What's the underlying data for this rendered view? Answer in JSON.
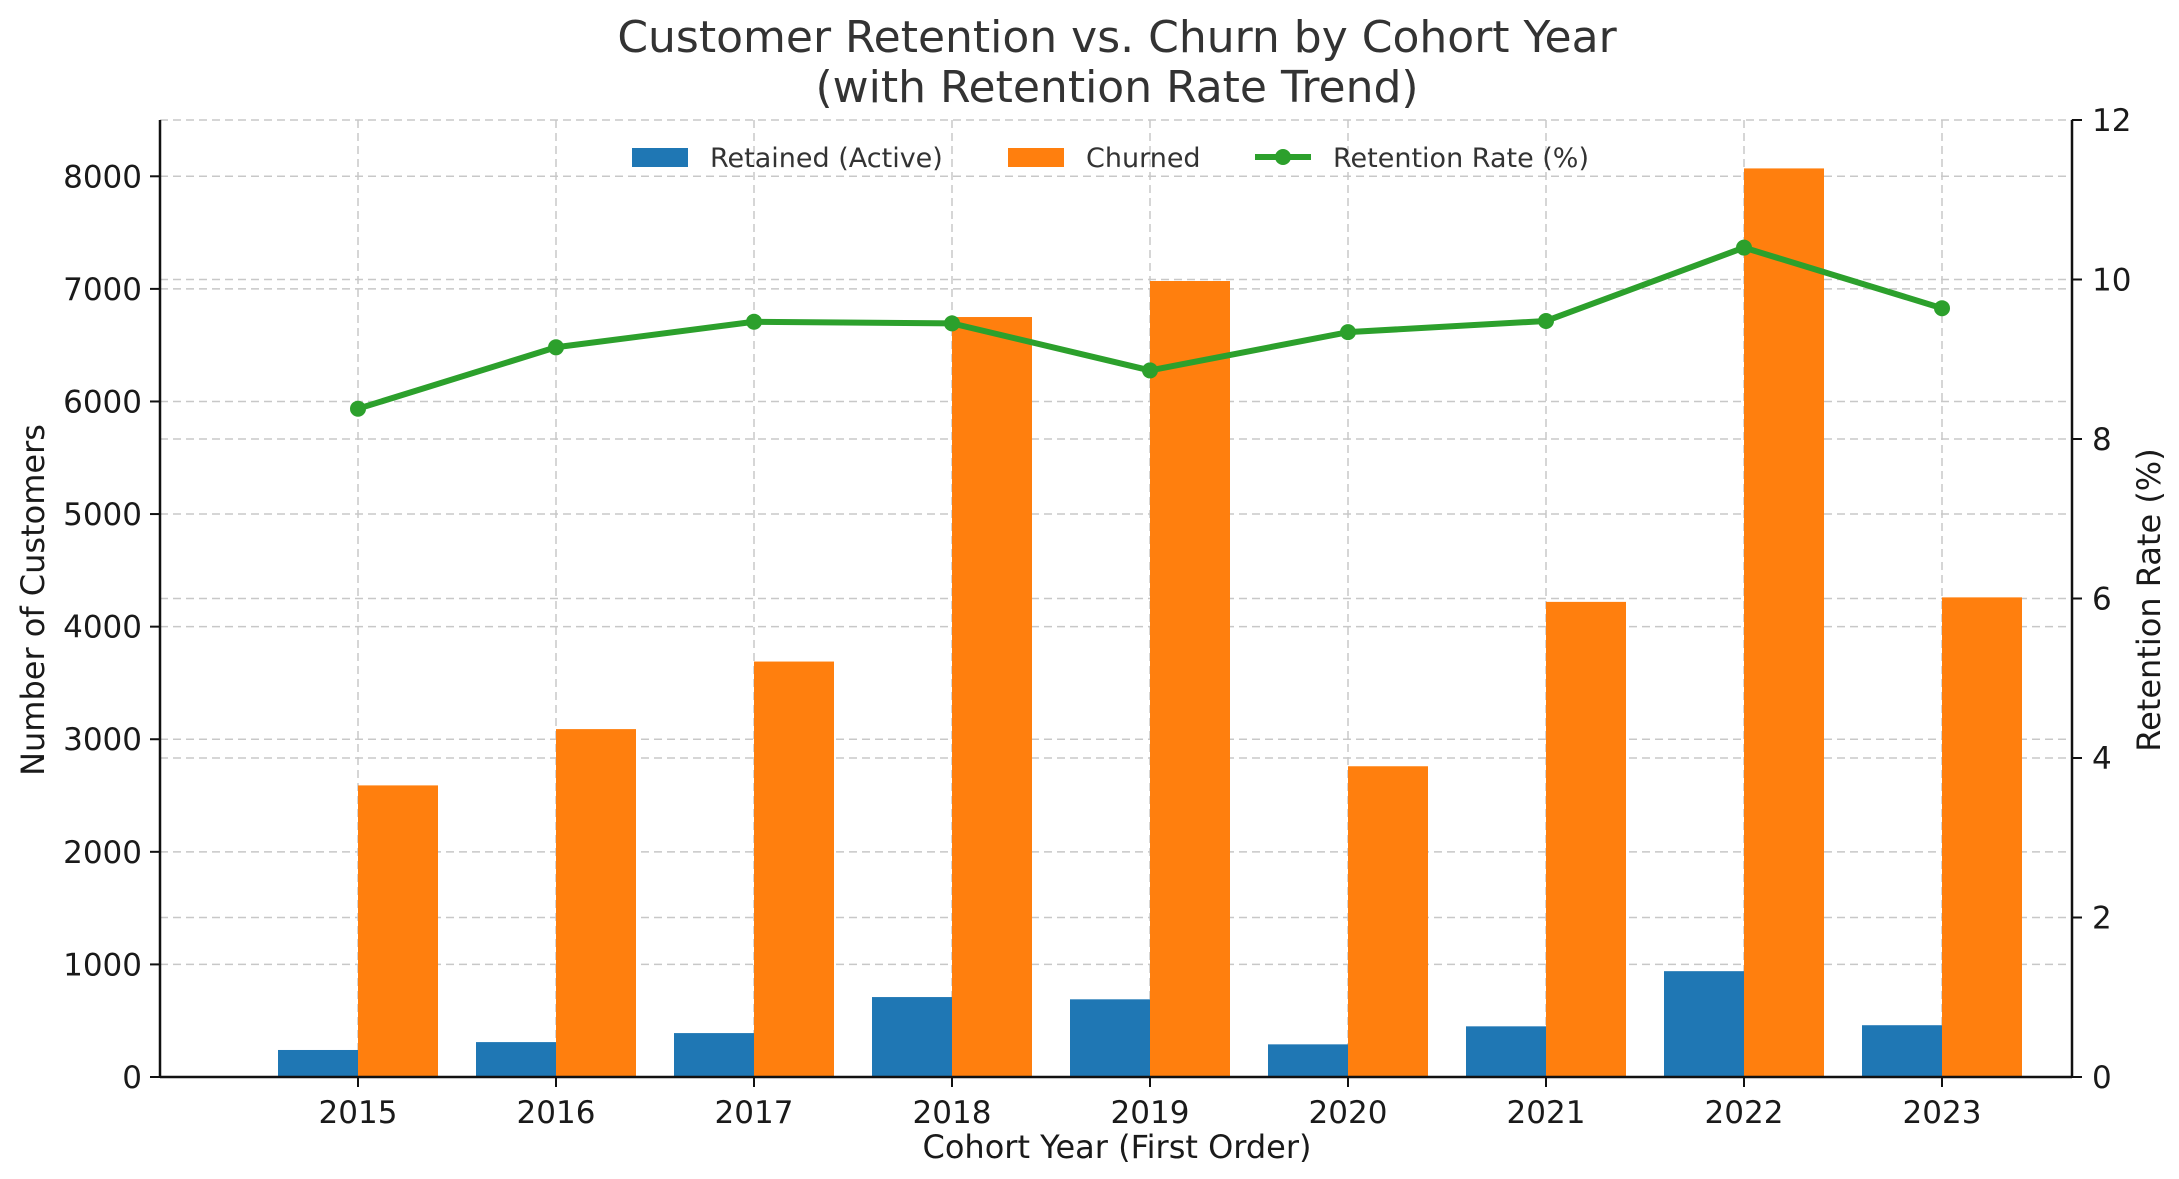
{
  "chart_data": {
    "type": "bar",
    "title": "Customer Retention vs. Churn by Cohort Year",
    "subtitle": "(with Retention Rate Trend)",
    "xlabel": "Cohort Year (First Order)",
    "ylabel": "Number of Customers",
    "y2label": "Retention Rate (%)",
    "categories": [
      "2015",
      "2016",
      "2017",
      "2018",
      "2019",
      "2020",
      "2021",
      "2022",
      "2023"
    ],
    "series": [
      {
        "name": "Retained (Active)",
        "type": "bar",
        "axis": "left",
        "color": "#1f77b4",
        "values": [
          240,
          310,
          390,
          710,
          690,
          290,
          450,
          940,
          460
        ]
      },
      {
        "name": "Churned",
        "type": "bar",
        "axis": "left",
        "color": "#ff7f0e",
        "values": [
          2590,
          3090,
          3690,
          6750,
          7070,
          2760,
          4220,
          8070,
          4260
        ]
      },
      {
        "name": "Retention Rate (%)",
        "type": "line",
        "axis": "right",
        "color": "#2ca02c",
        "values": [
          8.38,
          9.15,
          9.47,
          9.45,
          8.86,
          9.34,
          9.48,
          10.4,
          9.64
        ]
      }
    ],
    "ylim": [
      0,
      8500
    ],
    "y2lim": [
      0,
      12
    ],
    "yticks": [
      "0",
      "1000",
      "2000",
      "3000",
      "4000",
      "5000",
      "6000",
      "7000",
      "8000"
    ],
    "y2ticks": [
      "0",
      "2",
      "4",
      "6",
      "8",
      "10",
      "12"
    ],
    "grid": true,
    "legend_position": "top-center"
  }
}
